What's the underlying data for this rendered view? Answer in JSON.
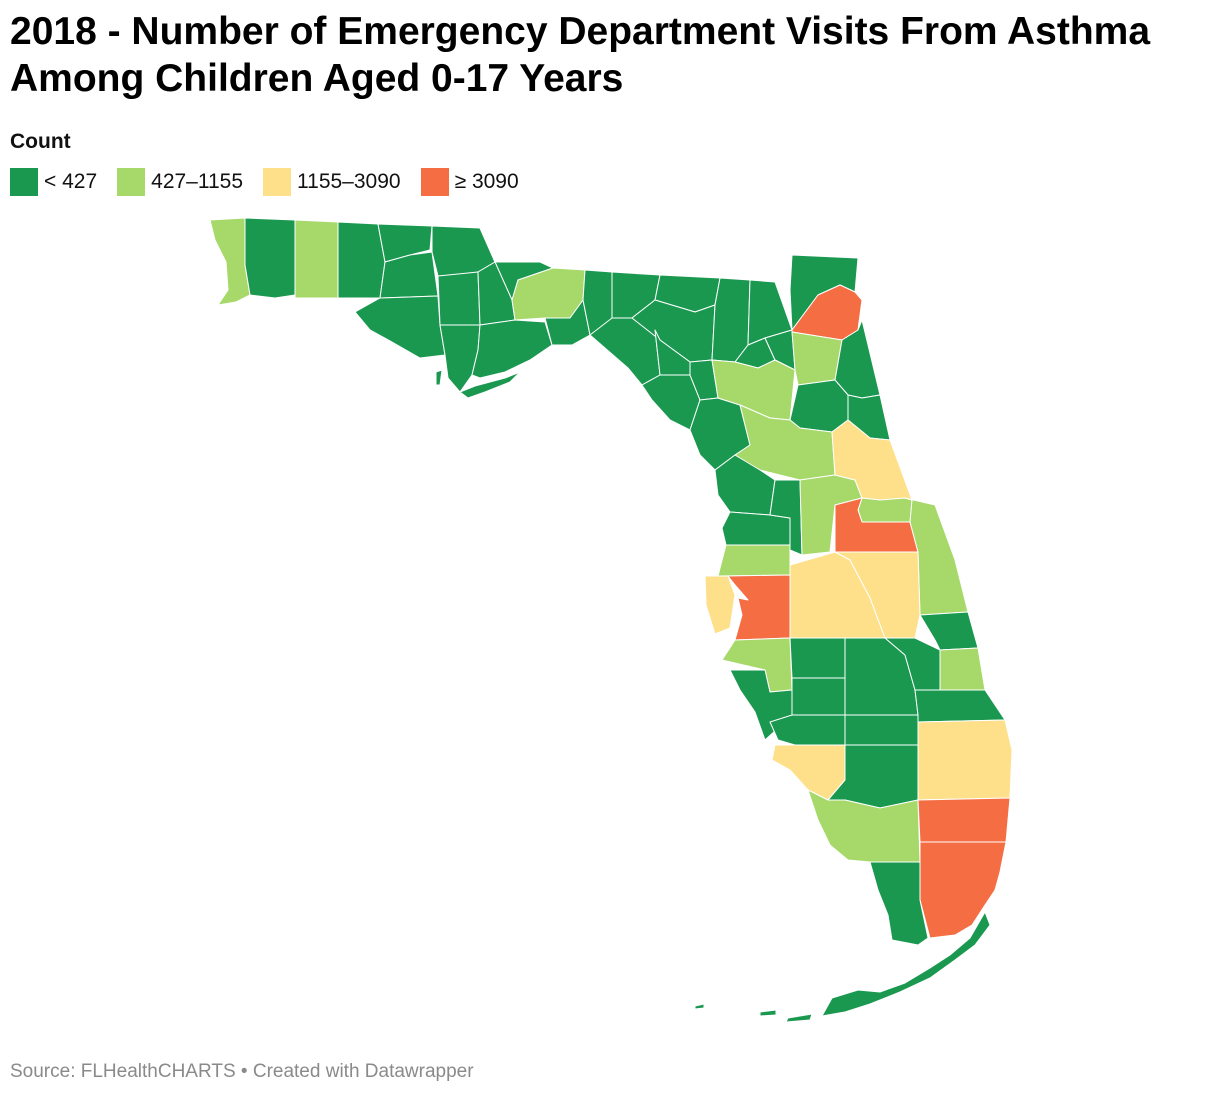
{
  "title": "2018 - Number of Emergency Department Visits From Asthma Among Children Aged 0-17 Years",
  "legend": {
    "title": "Count",
    "items": [
      {
        "label": "< 427",
        "color": "#1a9850"
      },
      {
        "label": "427–1155",
        "color": "#a6d96a"
      },
      {
        "label": "1155–3090",
        "color": "#fee08b"
      },
      {
        "label": "≥ 3090",
        "color": "#f46d43"
      }
    ]
  },
  "footer": {
    "source": "Source: FLHealthCHARTS",
    "separator": "•",
    "credit": "Created with Datawrapper"
  }
}
